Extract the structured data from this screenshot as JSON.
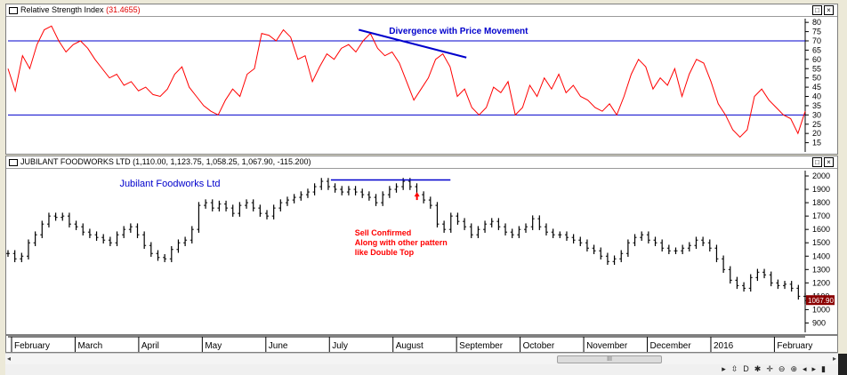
{
  "rsi_pane": {
    "title": "Relative Strength Index",
    "value": "(31.4655)",
    "btn_restore": "□",
    "btn_close": "×",
    "annotation": "Divergence with Price Movement"
  },
  "price_pane": {
    "title": "JUBILANT FOODWORKS LTD (1,110.00, 1,123.75, 1,058.25, 1,067.90, -115.200)",
    "btn_restore": "□",
    "btn_close": "×",
    "label": "Jubilant Foodworks Ltd",
    "annotation_lines": [
      "Sell Confirmed",
      "Along with other pattern",
      "like Double Top"
    ],
    "last_price": "1067.90"
  },
  "scrollbar": {
    "thumb_label": "III",
    "left_arrow": "◂",
    "right_arrow": "▸"
  },
  "toolbar": {
    "icons": [
      "▸",
      "⇳",
      "D",
      "✱",
      "✛",
      "⊖",
      "⊕",
      "◂",
      "▸",
      "▮"
    ]
  },
  "colors": {
    "rsi_line": "#ff0000",
    "level_line": "#0000cc",
    "trend_line": "#0000cc",
    "bars": "#000000",
    "annotation_red": "#ff0000",
    "annotation_blue": "#0000cc"
  },
  "chart_data": [
    {
      "type": "line",
      "title": "Relative Strength Index",
      "ylim": [
        10,
        82
      ],
      "yticks": [
        15,
        20,
        25,
        30,
        35,
        40,
        45,
        50,
        55,
        60,
        65,
        70,
        75,
        80
      ],
      "levels": [
        30,
        70
      ],
      "grid": false,
      "x_start": 0,
      "x_end": 100,
      "values": [
        55,
        43,
        62,
        55,
        68,
        76,
        78,
        70,
        64,
        68,
        70,
        66,
        60,
        55,
        50,
        52,
        46,
        48,
        43,
        45,
        41,
        40,
        44,
        52,
        56,
        45,
        40,
        35,
        32,
        30,
        38,
        44,
        40,
        52,
        55,
        74,
        73,
        70,
        76,
        72,
        60,
        62,
        48,
        56,
        63,
        60,
        66,
        68,
        64,
        70,
        74,
        66,
        62,
        64,
        58,
        48,
        38,
        44,
        50,
        60,
        63,
        56,
        40,
        44,
        34,
        30,
        34,
        45,
        42,
        48,
        30,
        34,
        46,
        40,
        50,
        44,
        52,
        42,
        46,
        40,
        38,
        34,
        32,
        36,
        30,
        40,
        52,
        60,
        56,
        44,
        50,
        46,
        55,
        40,
        52,
        60,
        58,
        48,
        36,
        30,
        22,
        18,
        22,
        40,
        44,
        38,
        34,
        30,
        28,
        20,
        32
      ],
      "trendline": [
        [
          44.0,
          76
        ],
        [
          57.5,
          61
        ]
      ]
    },
    {
      "type": "ohlc",
      "title": "JUBILANT FOODWORKS LTD",
      "ylim": [
        830,
        2040
      ],
      "yticks": [
        900,
        1000,
        1100,
        1200,
        1300,
        1400,
        1500,
        1600,
        1700,
        1800,
        1900,
        2000
      ],
      "grid": false,
      "x_start": 0,
      "x_end": 100,
      "closes": [
        1420,
        1380,
        1400,
        1500,
        1560,
        1640,
        1700,
        1690,
        1700,
        1640,
        1620,
        1580,
        1560,
        1540,
        1520,
        1500,
        1560,
        1600,
        1620,
        1560,
        1480,
        1420,
        1390,
        1380,
        1450,
        1500,
        1520,
        1600,
        1780,
        1800,
        1760,
        1790,
        1760,
        1720,
        1780,
        1800,
        1760,
        1720,
        1700,
        1760,
        1800,
        1820,
        1840,
        1860,
        1880,
        1920,
        1960,
        1920,
        1900,
        1880,
        1900,
        1880,
        1860,
        1840,
        1800,
        1860,
        1900,
        1920,
        1960,
        1920,
        1860,
        1820,
        1780,
        1640,
        1600,
        1700,
        1660,
        1620,
        1560,
        1600,
        1640,
        1660,
        1620,
        1580,
        1560,
        1600,
        1620,
        1680,
        1620,
        1580,
        1560,
        1560,
        1540,
        1520,
        1500,
        1460,
        1440,
        1400,
        1360,
        1380,
        1420,
        1500,
        1540,
        1560,
        1520,
        1500,
        1460,
        1440,
        1440,
        1460,
        1480,
        1520,
        1500,
        1460,
        1380,
        1300,
        1220,
        1180,
        1160,
        1240,
        1280,
        1260,
        1200,
        1180,
        1190,
        1160,
        1100,
        1067.9
      ],
      "double_top_line": 1970,
      "x_labels": [
        "February",
        "March",
        "April",
        "May",
        "June",
        "July",
        "August",
        "September",
        "October",
        "November",
        "December",
        "2016",
        "February"
      ]
    }
  ]
}
